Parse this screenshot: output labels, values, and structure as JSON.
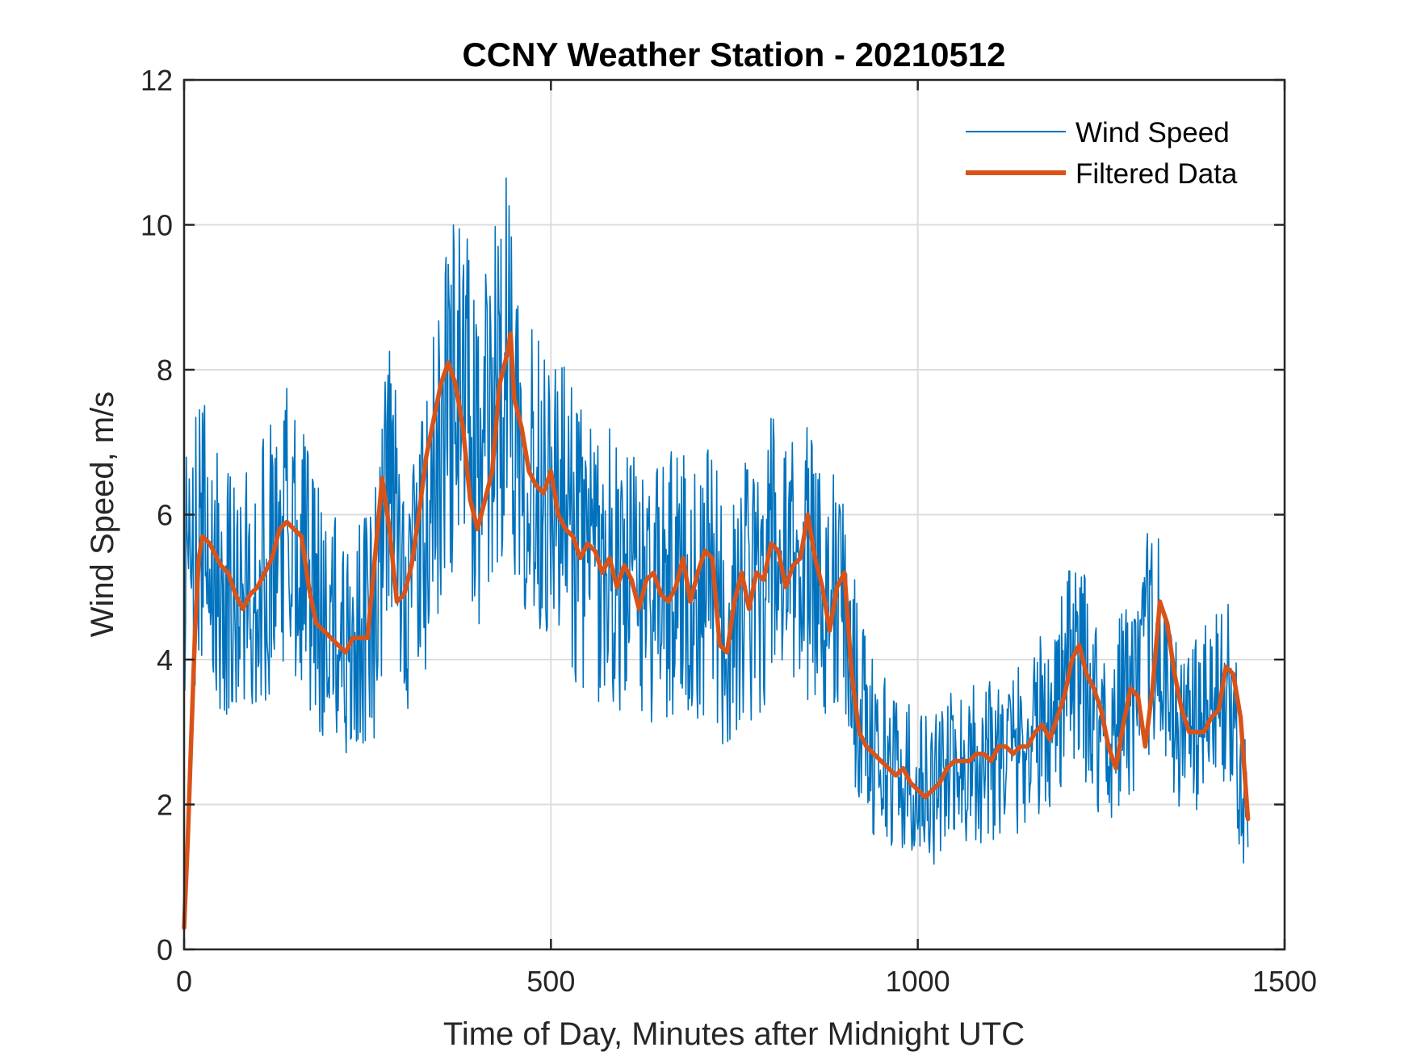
{
  "chart_data": {
    "type": "line",
    "title": "CCNY Weather Station - 20210512",
    "xlabel": "Time of Day, Minutes after Midnight UTC",
    "ylabel": "Wind Speed, m/s",
    "xlim": [
      0,
      1500
    ],
    "ylim": [
      0,
      12
    ],
    "xticks": [
      0,
      500,
      1000,
      1500
    ],
    "yticks": [
      0,
      2,
      4,
      6,
      8,
      10,
      12
    ],
    "xtick_labels": [
      "0",
      "500",
      "1000",
      "1500"
    ],
    "ytick_labels": [
      "0",
      "2",
      "4",
      "6",
      "8",
      "10",
      "12"
    ],
    "grid": true,
    "legend_position": "top-right",
    "series": [
      {
        "name": "Wind Speed",
        "color": "#0072BD",
        "style": "thin",
        "x": [
          0,
          20,
          40,
          60,
          80,
          100,
          120,
          140,
          160,
          180,
          200,
          220,
          240,
          260,
          280,
          300,
          320,
          340,
          360,
          380,
          400,
          420,
          440,
          460,
          480,
          500,
          520,
          540,
          560,
          580,
          600,
          620,
          640,
          660,
          680,
          700,
          720,
          740,
          760,
          780,
          800,
          820,
          840,
          860,
          880,
          900,
          920,
          940,
          960,
          980,
          1000,
          1020,
          1040,
          1060,
          1080,
          1100,
          1120,
          1140,
          1160,
          1180,
          1200,
          1220,
          1240,
          1260,
          1280,
          1300,
          1320,
          1340,
          1360,
          1380,
          1400,
          1420,
          1440,
          1450
        ],
        "values": [
          5.0,
          5.8,
          5.3,
          5.0,
          4.8,
          5.1,
          5.5,
          5.9,
          5.7,
          4.7,
          4.4,
          4.2,
          4.3,
          4.6,
          6.4,
          5.1,
          5.2,
          6.3,
          7.6,
          7.8,
          6.5,
          7.4,
          8.3,
          7.1,
          6.5,
          6.5,
          5.9,
          5.6,
          5.3,
          5.3,
          5.1,
          5.0,
          4.9,
          5.0,
          5.3,
          4.8,
          5.3,
          4.1,
          5.0,
          4.9,
          5.5,
          5.1,
          5.4,
          5.3,
          5.0,
          4.6,
          3.4,
          2.8,
          2.6,
          2.4,
          2.3,
          2.2,
          2.4,
          2.6,
          2.6,
          2.7,
          2.7,
          2.8,
          3.0,
          3.2,
          3.8,
          3.9,
          3.4,
          2.8,
          3.5,
          3.4,
          4.6,
          3.4,
          3.0,
          3.1,
          3.2,
          3.8,
          2.3,
          1.8
        ]
      },
      {
        "name": "Filtered Data",
        "color": "#D95319",
        "style": "thick",
        "x": [
          0,
          5,
          10,
          15,
          20,
          25,
          35,
          50,
          60,
          70,
          80,
          90,
          100,
          110,
          120,
          130,
          140,
          150,
          160,
          170,
          180,
          190,
          200,
          210,
          220,
          230,
          240,
          250,
          260,
          270,
          280,
          290,
          300,
          310,
          320,
          330,
          340,
          350,
          360,
          370,
          380,
          390,
          400,
          410,
          420,
          430,
          440,
          445,
          450,
          460,
          470,
          480,
          490,
          500,
          510,
          520,
          530,
          540,
          550,
          560,
          570,
          580,
          590,
          600,
          610,
          620,
          630,
          640,
          650,
          660,
          670,
          680,
          690,
          700,
          710,
          720,
          730,
          740,
          750,
          760,
          770,
          780,
          790,
          800,
          810,
          820,
          830,
          840,
          850,
          860,
          870,
          880,
          890,
          900,
          910,
          920,
          930,
          940,
          950,
          960,
          970,
          980,
          990,
          1000,
          1010,
          1020,
          1030,
          1040,
          1050,
          1060,
          1070,
          1080,
          1090,
          1100,
          1110,
          1120,
          1130,
          1140,
          1150,
          1160,
          1170,
          1180,
          1190,
          1200,
          1210,
          1220,
          1230,
          1240,
          1250,
          1260,
          1270,
          1280,
          1290,
          1300,
          1310,
          1320,
          1330,
          1340,
          1350,
          1360,
          1370,
          1380,
          1390,
          1400,
          1410,
          1420,
          1430,
          1440,
          1450
        ],
        "values": [
          0.3,
          1.5,
          3.0,
          4.4,
          5.4,
          5.7,
          5.6,
          5.3,
          5.2,
          4.9,
          4.7,
          4.9,
          5.0,
          5.2,
          5.4,
          5.8,
          5.9,
          5.8,
          5.7,
          5.0,
          4.5,
          4.4,
          4.3,
          4.2,
          4.1,
          4.3,
          4.3,
          4.3,
          5.4,
          6.5,
          5.8,
          4.8,
          4.9,
          5.3,
          6.0,
          6.8,
          7.3,
          7.8,
          8.1,
          7.8,
          7.2,
          6.2,
          5.8,
          6.2,
          6.6,
          7.8,
          8.2,
          8.5,
          7.6,
          7.2,
          6.6,
          6.4,
          6.3,
          6.6,
          6.0,
          5.8,
          5.7,
          5.4,
          5.6,
          5.5,
          5.2,
          5.4,
          5.0,
          5.3,
          5.1,
          4.7,
          5.1,
          5.2,
          4.9,
          4.8,
          5.0,
          5.4,
          4.8,
          5.2,
          5.5,
          5.4,
          4.2,
          4.1,
          4.8,
          5.2,
          4.7,
          5.2,
          5.1,
          5.6,
          5.5,
          5.0,
          5.3,
          5.4,
          6.0,
          5.4,
          5.0,
          4.4,
          5.0,
          5.2,
          3.8,
          3.0,
          2.8,
          2.7,
          2.6,
          2.5,
          2.4,
          2.5,
          2.3,
          2.2,
          2.1,
          2.2,
          2.3,
          2.5,
          2.6,
          2.6,
          2.6,
          2.7,
          2.7,
          2.6,
          2.8,
          2.8,
          2.7,
          2.8,
          2.8,
          3.0,
          3.1,
          2.9,
          3.2,
          3.5,
          4.0,
          4.2,
          3.8,
          3.6,
          3.3,
          2.8,
          2.5,
          3.1,
          3.6,
          3.5,
          2.8,
          3.6,
          4.8,
          4.5,
          3.8,
          3.3,
          3.0,
          3.0,
          3.0,
          3.2,
          3.3,
          3.9,
          3.8,
          3.2,
          1.8
        ]
      }
    ]
  }
}
